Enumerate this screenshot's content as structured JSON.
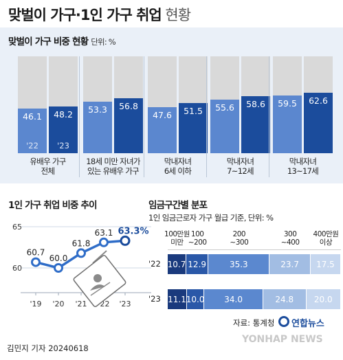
{
  "title": {
    "bold": "맞벌이 가구·1인 가구 취업",
    "light": " 현황"
  },
  "chart_data": [
    {
      "type": "bar",
      "title": "맞벌이 가구 비중 현황",
      "unit": "단위: %",
      "series_years": [
        "'22",
        "'23"
      ],
      "groups": [
        {
          "label_lines": [
            "유배우 가구",
            "전체"
          ],
          "values": [
            46.1,
            48.2
          ]
        },
        {
          "label_lines": [
            "18세 미만 자녀가",
            "있는 유배우 가구"
          ],
          "values": [
            53.3,
            56.8
          ]
        },
        {
          "label_lines": [
            "막내자녀",
            "6세 이하"
          ],
          "values": [
            47.6,
            51.5
          ]
        },
        {
          "label_lines": [
            "막내자녀",
            "7~12세"
          ],
          "values": [
            55.6,
            58.6
          ]
        },
        {
          "label_lines": [
            "막내자녀",
            "13~17세"
          ],
          "values": [
            59.5,
            62.6
          ]
        }
      ],
      "ylim": [
        0,
        100
      ]
    },
    {
      "type": "line",
      "title": "1인 가구 취업 비중 추이",
      "categories": [
        "'19",
        "'20",
        "'21",
        "'22",
        "'23"
      ],
      "values": [
        60.7,
        60.0,
        61.8,
        63.1,
        63.3
      ],
      "value_labels": [
        "60.7",
        "60.0",
        "61.8",
        "63.1",
        "63.3%"
      ],
      "yticks": [
        60,
        65
      ],
      "ylim": [
        57,
        67
      ]
    },
    {
      "type": "bar",
      "title": "임금구간별 분포",
      "subtitle": "1인 임금근로자 가구 월급 기준, 단위: %",
      "bins": [
        [
          "100만원",
          "미만"
        ],
        [
          "100",
          "~200"
        ],
        [
          "200",
          "~300"
        ],
        [
          "300",
          "~400"
        ],
        [
          "400만원",
          "이상"
        ]
      ],
      "rows": [
        {
          "label": "'22",
          "values": [
            10.7,
            12.9,
            35.3,
            23.7,
            17.5
          ]
        },
        {
          "label": "'23",
          "values": [
            11.1,
            10.0,
            34.0,
            24.8,
            20.0
          ]
        }
      ]
    }
  ],
  "colors": {
    "light": "#5b87cf",
    "dark": "#1b4c9c",
    "grey": "#d9d9d9",
    "seg": [
      "#1a3a7d",
      "#2a58a8",
      "#5b88cf",
      "#a2bde3",
      "#c6d7ef"
    ]
  },
  "footer": {
    "source": "자료: 통계청",
    "byline": "김민지 기자  20240618",
    "logo_kr": "연합뉴스",
    "logo_en": "YONHAP NEWS"
  }
}
